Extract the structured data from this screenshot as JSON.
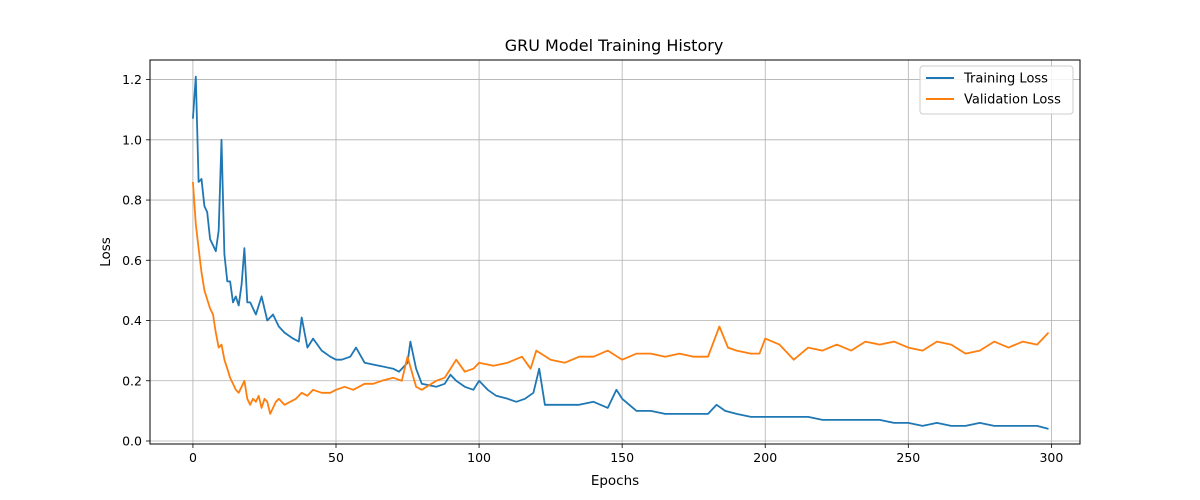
{
  "chart_data": {
    "type": "line",
    "title": "GRU Model Training History",
    "xlabel": "Epochs",
    "ylabel": "Loss",
    "xlim": [
      -15,
      310
    ],
    "ylim": [
      -0.01,
      1.265
    ],
    "xticks": [
      0,
      50,
      100,
      150,
      200,
      250,
      300
    ],
    "yticks": [
      0.0,
      0.2,
      0.4,
      0.6,
      0.8,
      1.0,
      1.2
    ],
    "xtick_labels": [
      "0",
      "50",
      "100",
      "150",
      "200",
      "250",
      "300"
    ],
    "ytick_labels": [
      "0.0",
      "0.2",
      "0.4",
      "0.6",
      "0.8",
      "1.0",
      "1.2"
    ],
    "grid": true,
    "legend_position": "upper-right",
    "series": [
      {
        "name": "Training Loss",
        "color": "#1f77b4",
        "x": [
          0,
          1,
          2,
          3,
          4,
          5,
          6,
          7,
          8,
          9,
          10,
          11,
          12,
          13,
          14,
          15,
          16,
          17,
          18,
          19,
          20,
          22,
          24,
          26,
          28,
          30,
          32,
          35,
          37,
          38,
          40,
          42,
          45,
          48,
          50,
          52,
          55,
          57,
          60,
          65,
          70,
          72,
          75,
          76,
          78,
          80,
          85,
          88,
          90,
          92,
          95,
          98,
          100,
          103,
          106,
          110,
          113,
          116,
          119,
          121,
          123,
          126,
          130,
          135,
          140,
          145,
          148,
          150,
          155,
          160,
          165,
          170,
          175,
          180,
          183,
          186,
          190,
          195,
          200,
          205,
          210,
          215,
          220,
          225,
          230,
          235,
          240,
          245,
          250,
          255,
          260,
          265,
          270,
          275,
          280,
          285,
          290,
          295,
          299
        ],
        "y": [
          1.07,
          1.21,
          0.86,
          0.87,
          0.78,
          0.76,
          0.67,
          0.65,
          0.63,
          0.7,
          1.0,
          0.62,
          0.53,
          0.53,
          0.46,
          0.48,
          0.45,
          0.52,
          0.64,
          0.46,
          0.46,
          0.42,
          0.48,
          0.4,
          0.42,
          0.38,
          0.36,
          0.34,
          0.33,
          0.41,
          0.31,
          0.34,
          0.3,
          0.28,
          0.27,
          0.27,
          0.28,
          0.31,
          0.26,
          0.25,
          0.24,
          0.23,
          0.26,
          0.33,
          0.24,
          0.19,
          0.18,
          0.19,
          0.22,
          0.2,
          0.18,
          0.17,
          0.2,
          0.17,
          0.15,
          0.14,
          0.13,
          0.14,
          0.16,
          0.24,
          0.12,
          0.12,
          0.12,
          0.12,
          0.13,
          0.11,
          0.17,
          0.14,
          0.1,
          0.1,
          0.09,
          0.09,
          0.09,
          0.09,
          0.12,
          0.1,
          0.09,
          0.08,
          0.08,
          0.08,
          0.08,
          0.08,
          0.07,
          0.07,
          0.07,
          0.07,
          0.07,
          0.06,
          0.06,
          0.05,
          0.06,
          0.05,
          0.05,
          0.06,
          0.05,
          0.05,
          0.05,
          0.05,
          0.04
        ]
      },
      {
        "name": "Validation Loss",
        "color": "#ff7f0e",
        "x": [
          0,
          1,
          2,
          3,
          4,
          5,
          6,
          7,
          8,
          9,
          10,
          11,
          12,
          13,
          14,
          15,
          16,
          17,
          18,
          19,
          20,
          21,
          22,
          23,
          24,
          25,
          26,
          27,
          28,
          29,
          30,
          32,
          34,
          36,
          38,
          40,
          42,
          45,
          48,
          50,
          53,
          56,
          60,
          63,
          66,
          70,
          73,
          75,
          78,
          80,
          85,
          88,
          90,
          92,
          95,
          98,
          100,
          105,
          110,
          115,
          118,
          120,
          125,
          130,
          135,
          140,
          145,
          150,
          155,
          160,
          165,
          170,
          175,
          180,
          184,
          187,
          190,
          195,
          198,
          200,
          205,
          210,
          215,
          220,
          225,
          230,
          235,
          240,
          245,
          250,
          255,
          260,
          265,
          270,
          275,
          280,
          285,
          290,
          295,
          299
        ],
        "y": [
          0.86,
          0.72,
          0.64,
          0.56,
          0.5,
          0.47,
          0.44,
          0.42,
          0.36,
          0.31,
          0.32,
          0.27,
          0.24,
          0.21,
          0.19,
          0.17,
          0.16,
          0.18,
          0.2,
          0.14,
          0.12,
          0.14,
          0.13,
          0.15,
          0.11,
          0.14,
          0.13,
          0.09,
          0.11,
          0.13,
          0.14,
          0.12,
          0.13,
          0.14,
          0.16,
          0.15,
          0.17,
          0.16,
          0.16,
          0.17,
          0.18,
          0.17,
          0.19,
          0.19,
          0.2,
          0.21,
          0.2,
          0.28,
          0.18,
          0.17,
          0.2,
          0.21,
          0.24,
          0.27,
          0.23,
          0.24,
          0.26,
          0.25,
          0.26,
          0.28,
          0.24,
          0.3,
          0.27,
          0.26,
          0.28,
          0.28,
          0.3,
          0.27,
          0.29,
          0.29,
          0.28,
          0.29,
          0.28,
          0.28,
          0.38,
          0.31,
          0.3,
          0.29,
          0.29,
          0.34,
          0.32,
          0.27,
          0.31,
          0.3,
          0.32,
          0.3,
          0.33,
          0.32,
          0.33,
          0.31,
          0.3,
          0.33,
          0.32,
          0.29,
          0.3,
          0.33,
          0.31,
          0.33,
          0.32,
          0.36
        ]
      }
    ]
  }
}
